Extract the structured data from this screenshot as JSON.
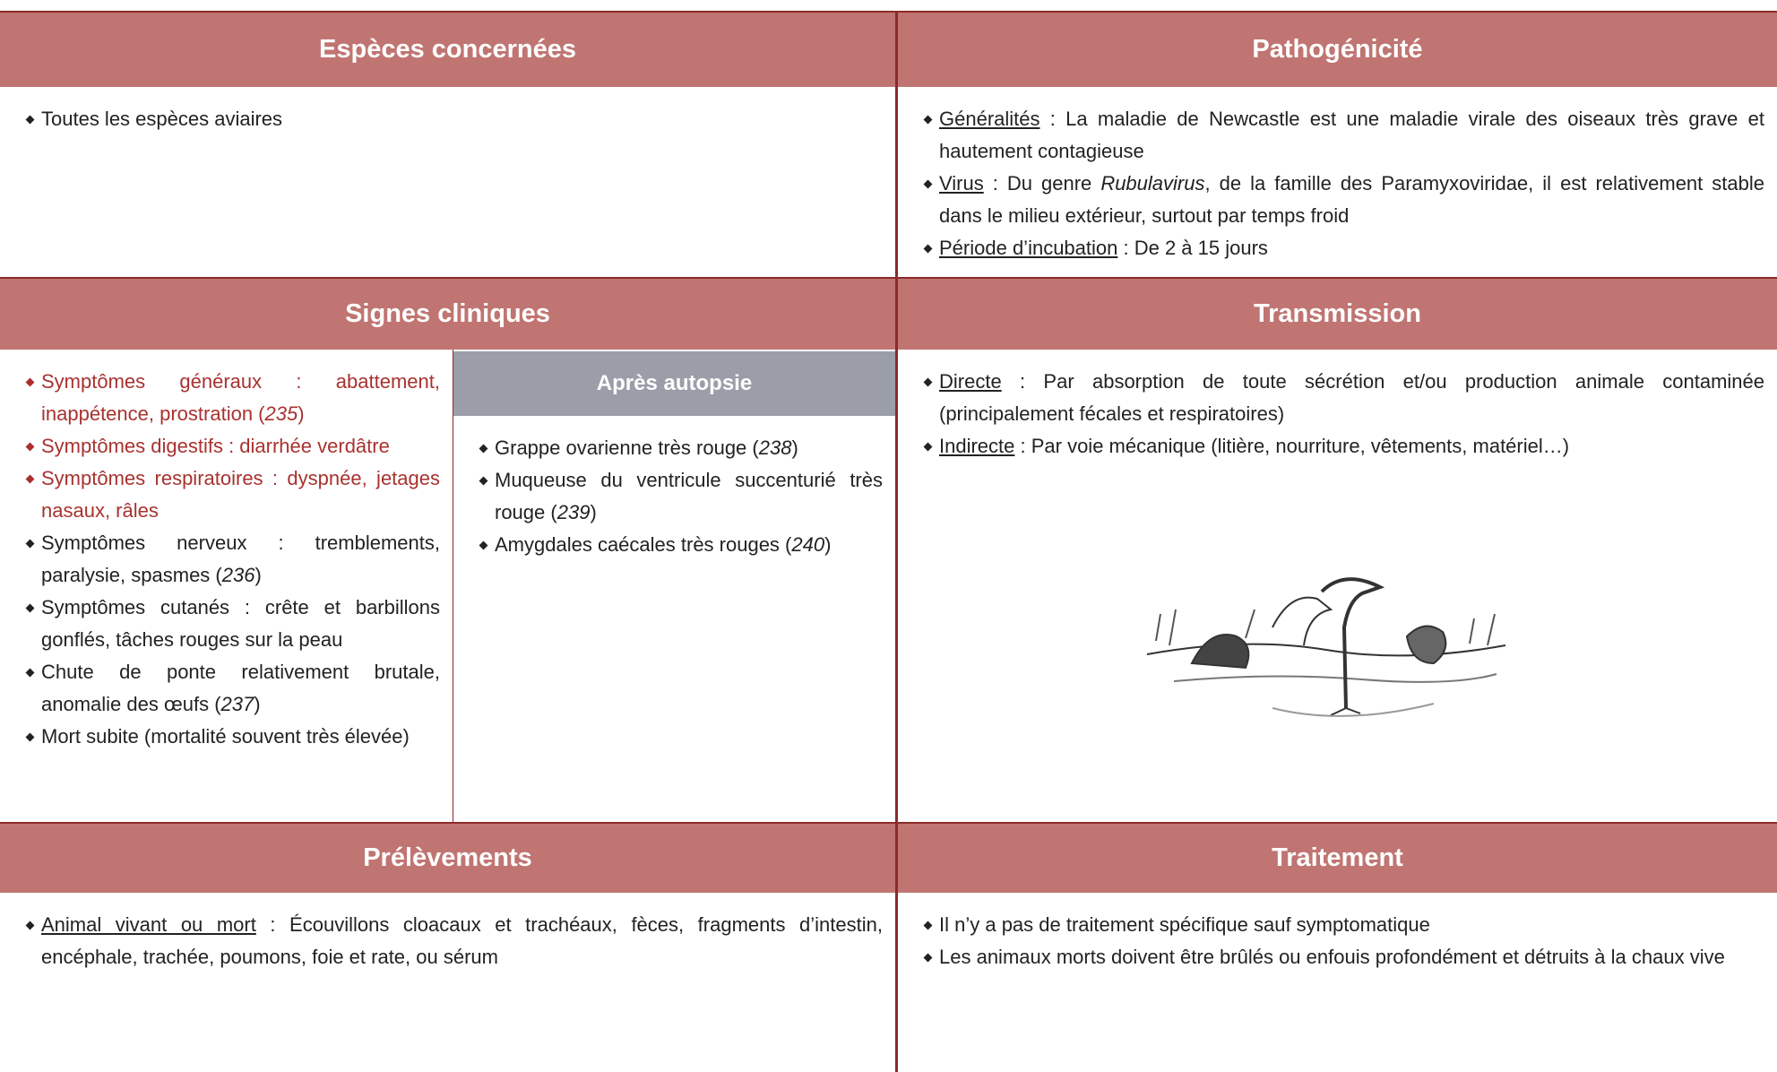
{
  "sections": [
    {
      "title": "Espèces concernées",
      "items": [
        {
          "runs": [
            {
              "text": "Toutes les espèces aviaires"
            }
          ]
        }
      ]
    },
    {
      "title": "Pathogénicité",
      "items": [
        {
          "runs": [
            {
              "text": "Généralités",
              "style": "underline"
            },
            {
              "text": " : La maladie de Newcastle est une maladie virale des oiseaux très grave et hautement contagieuse"
            }
          ]
        },
        {
          "runs": [
            {
              "text": "Virus",
              "style": "underline"
            },
            {
              "text": " : Du genre "
            },
            {
              "text": "Rubulavirus",
              "style": "italic"
            },
            {
              "text": ", de la famille des Paramyxoviridae, il est relativement stable dans le milieu extérieur, surtout par temps froid"
            }
          ]
        },
        {
          "runs": [
            {
              "text": "Période d’incubation",
              "style": "underline"
            },
            {
              "text": " : De 2 à 15 jours"
            }
          ]
        }
      ]
    },
    {
      "title": "Signes cliniques",
      "items": [
        {
          "color": "#a8322f",
          "runs": [
            {
              "text": "Symptômes généraux : abattement, inappétence, prostration ("
            },
            {
              "text": "235",
              "style": "italic"
            },
            {
              "text": ")"
            }
          ]
        },
        {
          "color": "#a8322f",
          "runs": [
            {
              "text": "Symptômes digestifs : diarrhée verdâtre"
            }
          ]
        },
        {
          "color": "#a8322f",
          "runs": [
            {
              "text": "Symptômes respiratoires : dyspnée, jetages nasaux, râles"
            }
          ]
        },
        {
          "runs": [
            {
              "text": "Symptômes nerveux : tremblements, paralysie, spasmes ("
            },
            {
              "text": "236",
              "style": "italic"
            },
            {
              "text": ")"
            }
          ]
        },
        {
          "runs": [
            {
              "text": "Symptômes cutanés : crête et barbillons gonflés, tâches rouges sur la peau"
            }
          ]
        },
        {
          "runs": [
            {
              "text": "Chute de ponte relativement brutale, anomalie des œufs ("
            },
            {
              "text": "237",
              "style": "italic"
            },
            {
              "text": ")"
            }
          ]
        },
        {
          "runs": [
            {
              "text": "Mort subite (mortalité souvent très élevée)"
            }
          ]
        }
      ],
      "subsection": {
        "title": "Après autopsie",
        "items": [
          {
            "runs": [
              {
                "text": "Grappe ovarienne très rouge ("
              },
              {
                "text": "238",
                "style": "italic"
              },
              {
                "text": ")"
              }
            ]
          },
          {
            "runs": [
              {
                "text": "Muqueuse du ventricule succenturié très rouge ("
              },
              {
                "text": "239",
                "style": "italic"
              },
              {
                "text": ")"
              }
            ]
          },
          {
            "runs": [
              {
                "text": "Amygdales caécales très rouges ("
              },
              {
                "text": "240",
                "style": "italic"
              },
              {
                "text": ")"
              }
            ]
          }
        ]
      }
    },
    {
      "title": "Transmission",
      "items": [
        {
          "runs": [
            {
              "text": "Directe",
              "style": "underline"
            },
            {
              "text": " : Par absorption de toute sécrétion et/ou production animale contaminée (principalement fécales et respiratoires)"
            }
          ]
        },
        {
          "runs": [
            {
              "text": "Indirecte",
              "style": "underline"
            },
            {
              "text": " : Par voie mécanique (litière, nourriture, vêtements, matériel…)"
            }
          ]
        }
      ]
    },
    {
      "title": "Prélèvements",
      "items": [
        {
          "runs": [
            {
              "text": "Animal vivant ou mort",
              "style": "underline"
            },
            {
              "text": " : Écouvillons cloacaux et trachéaux, fèces, fragments d’intestin, encéphale, trachée, poumons, foie et rate, ou sérum"
            }
          ]
        }
      ]
    },
    {
      "title": "Traitement",
      "items": [
        {
          "runs": [
            {
              "text": "Il n’y a pas de traitement spécifique sauf symptomatique"
            }
          ]
        },
        {
          "runs": [
            {
              "text": "Les animaux morts doivent être brûlés ou enfouis profondément et détruits à la chaux vive"
            }
          ]
        }
      ]
    }
  ]
}
